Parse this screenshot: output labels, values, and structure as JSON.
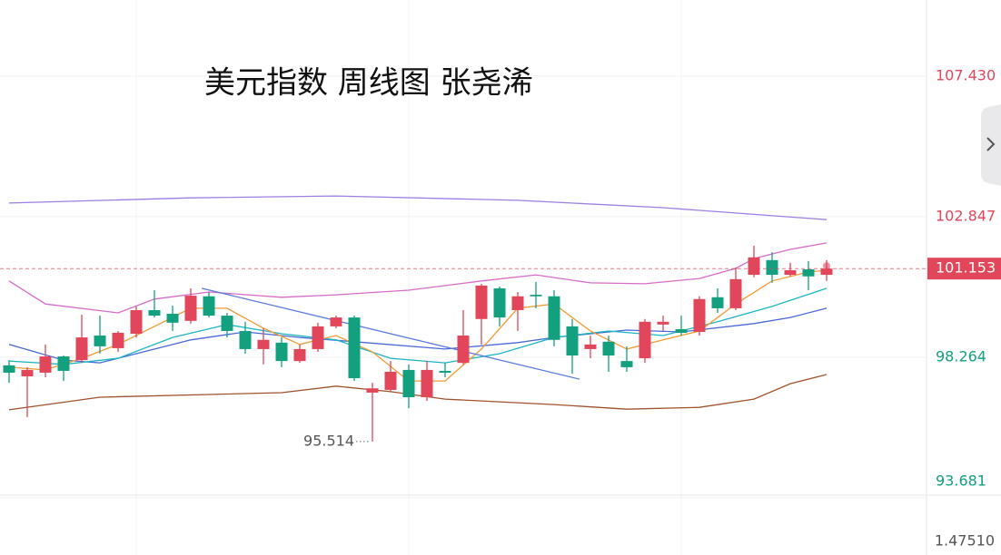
{
  "chart_data": {
    "type": "candlestick",
    "title": "美元指数 周线图 张尧浠",
    "categories": [
      null,
      null,
      null,
      null,
      null,
      null,
      null,
      null,
      null,
      null,
      null,
      null,
      null,
      null,
      null,
      null,
      null,
      null,
      null,
      null,
      null,
      null,
      null,
      null,
      null,
      null,
      null,
      null,
      null,
      null,
      null,
      null,
      null,
      null,
      null,
      null,
      null,
      null,
      null,
      null,
      null,
      null,
      null,
      null,
      null,
      null
    ],
    "open": [
      98.0,
      97.64,
      97.76,
      98.29,
      98.17,
      98.97,
      98.56,
      99.03,
      99.8,
      99.68,
      99.45,
      100.25,
      99.62,
      99.12,
      98.53,
      98.74,
      98.14,
      98.53,
      99.27,
      99.56,
      97.11,
      97.2,
      97.85,
      96.96,
      97.82,
      98.08,
      99.51,
      100.51,
      99.8,
      100.3,
      100.25,
      99.27,
      98.53,
      98.77,
      98.14,
      98.23,
      99.33,
      99.18,
      99.09,
      100.22,
      99.86,
      100.95,
      101.43,
      100.95,
      101.13,
      100.95
    ],
    "high": [
      98.17,
      97.94,
      98.68,
      98.32,
      99.65,
      99.62,
      99.12,
      99.92,
      100.45,
      99.95,
      100.51,
      100.39,
      99.71,
      99.42,
      99.21,
      98.91,
      98.68,
      99.39,
      99.62,
      99.62,
      97.43,
      98.14,
      98.03,
      98.14,
      98.08,
      99.8,
      100.66,
      100.57,
      100.39,
      100.72,
      100.45,
      99.51,
      98.97,
      98.97,
      98.62,
      99.51,
      99.62,
      99.62,
      100.25,
      100.51,
      101.19,
      101.9,
      101.69,
      101.34,
      101.4,
      101.43
    ],
    "low": [
      97.43,
      96.31,
      97.61,
      97.49,
      98.08,
      98.38,
      98.44,
      98.91,
      99.56,
      99.12,
      99.36,
      99.56,
      98.91,
      98.38,
      98.03,
      97.94,
      98.08,
      98.44,
      99.21,
      97.49,
      95.514,
      97.14,
      96.6,
      96.84,
      97.61,
      98.03,
      98.68,
      99.27,
      99.12,
      99.86,
      98.62,
      97.73,
      98.23,
      97.79,
      97.79,
      98.08,
      99.12,
      98.97,
      98.97,
      99.71,
      99.8,
      100.87,
      100.69,
      100.9,
      100.45,
      100.75
    ],
    "close": [
      97.76,
      97.85,
      98.29,
      97.82,
      98.91,
      98.62,
      99.06,
      99.8,
      99.62,
      99.39,
      100.27,
      99.62,
      99.12,
      98.53,
      98.83,
      98.14,
      98.53,
      99.27,
      99.56,
      97.58,
      97.25,
      97.79,
      96.96,
      97.85,
      97.76,
      98.97,
      100.6,
      99.56,
      100.25,
      100.25,
      98.83,
      98.32,
      98.68,
      98.32,
      97.94,
      99.42,
      99.42,
      99.06,
      100.16,
      99.86,
      100.81,
      101.52,
      100.95,
      101.1,
      100.9,
      101.153
    ],
    "up_color": "#e2465a",
    "down_color": "#12a07f",
    "series": [
      {
        "color": "#9b7fe3",
        "x": [
          0,
          10,
          18,
          28,
          36,
          45
        ],
        "values": [
          103.29,
          103.46,
          103.52,
          103.38,
          103.14,
          102.75
        ]
      },
      {
        "color": "#d86cc8",
        "x": [
          0,
          2,
          6,
          8,
          11,
          15,
          18,
          22,
          26,
          29,
          32,
          35,
          38,
          40,
          41,
          43,
          45
        ],
        "values": [
          100.75,
          100.0,
          99.71,
          100.16,
          100.39,
          100.22,
          100.3,
          100.45,
          100.75,
          100.95,
          100.69,
          100.66,
          100.83,
          101.16,
          101.48,
          101.78,
          101.99
        ]
      },
      {
        "color": "#a0522d",
        "x": [
          0,
          5,
          11,
          15,
          18,
          21,
          24,
          30,
          34,
          38,
          41,
          43,
          45
        ],
        "values": [
          96.55,
          96.96,
          97.05,
          97.11,
          97.32,
          97.14,
          96.9,
          96.72,
          96.57,
          96.63,
          96.9,
          97.4,
          97.7
        ]
      },
      {
        "color": "#4a68d8",
        "x": [
          0,
          3,
          5,
          7,
          10,
          13,
          16,
          19,
          24,
          28,
          30,
          34,
          37,
          41,
          43,
          45
        ],
        "values": [
          98.68,
          98.17,
          98.08,
          98.38,
          98.83,
          99.09,
          98.91,
          98.77,
          98.53,
          98.74,
          98.91,
          99.15,
          99.09,
          99.36,
          99.56,
          99.86
        ]
      },
      {
        "color": "#1cb5c4",
        "x": [
          0,
          3,
          6,
          9,
          12,
          15,
          18,
          21,
          24,
          27,
          30,
          33,
          36,
          39,
          42,
          45
        ],
        "values": [
          98.14,
          98.03,
          98.23,
          98.91,
          99.33,
          99.03,
          98.83,
          98.23,
          98.08,
          98.38,
          98.91,
          99.12,
          98.97,
          99.42,
          99.92,
          100.51
        ]
      },
      {
        "color": "#f39a34",
        "x": [
          0,
          2,
          4,
          6,
          8,
          10,
          12,
          14,
          16,
          18,
          20,
          22,
          24,
          26,
          28,
          30,
          32,
          34,
          36,
          38,
          40,
          42,
          44,
          45
        ],
        "values": [
          97.94,
          97.85,
          98.23,
          98.68,
          99.27,
          99.86,
          99.86,
          99.21,
          98.68,
          98.97,
          98.44,
          97.49,
          97.49,
          98.53,
          99.86,
          100.0,
          99.12,
          98.53,
          98.83,
          99.12,
          100.0,
          100.75,
          101.04,
          101.1
        ]
      },
      {
        "color": "#5b7be0",
        "x": [
          10.6,
          31.4
        ],
        "values": [
          100.51,
          97.55
        ]
      }
    ],
    "ylim": [
      93.62,
      109.91
    ],
    "yticks": [
      {
        "value": 107.43,
        "label": "107.430"
      },
      {
        "value": 102.847,
        "label": "102.847"
      },
      {
        "value": 98.264,
        "label": "98.264"
      },
      {
        "value": 93.681,
        "label": "93.681"
      }
    ],
    "grid": true,
    "sub_pane_tick": "1.47510"
  }
}
